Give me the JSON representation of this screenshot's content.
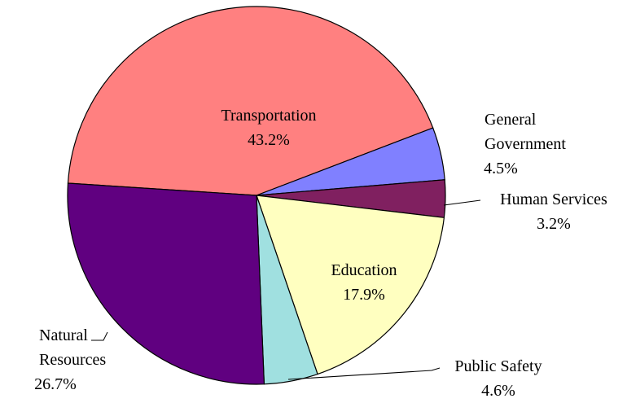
{
  "chart_data": {
    "type": "pie",
    "categories": [
      "Transportation",
      "General Government",
      "Human Services",
      "Education",
      "Public Safety",
      "Natural Resources"
    ],
    "values": [
      43.2,
      4.5,
      3.2,
      17.9,
      4.6,
      26.7
    ],
    "value_labels": [
      "43.2%",
      "4.5%",
      "3.2%",
      "17.9%",
      "4.6%",
      "26.7%"
    ],
    "colors": [
      "#ff8080",
      "#8080ff",
      "#802060",
      "#ffffc0",
      "#a0e0e0",
      "#600080"
    ]
  }
}
